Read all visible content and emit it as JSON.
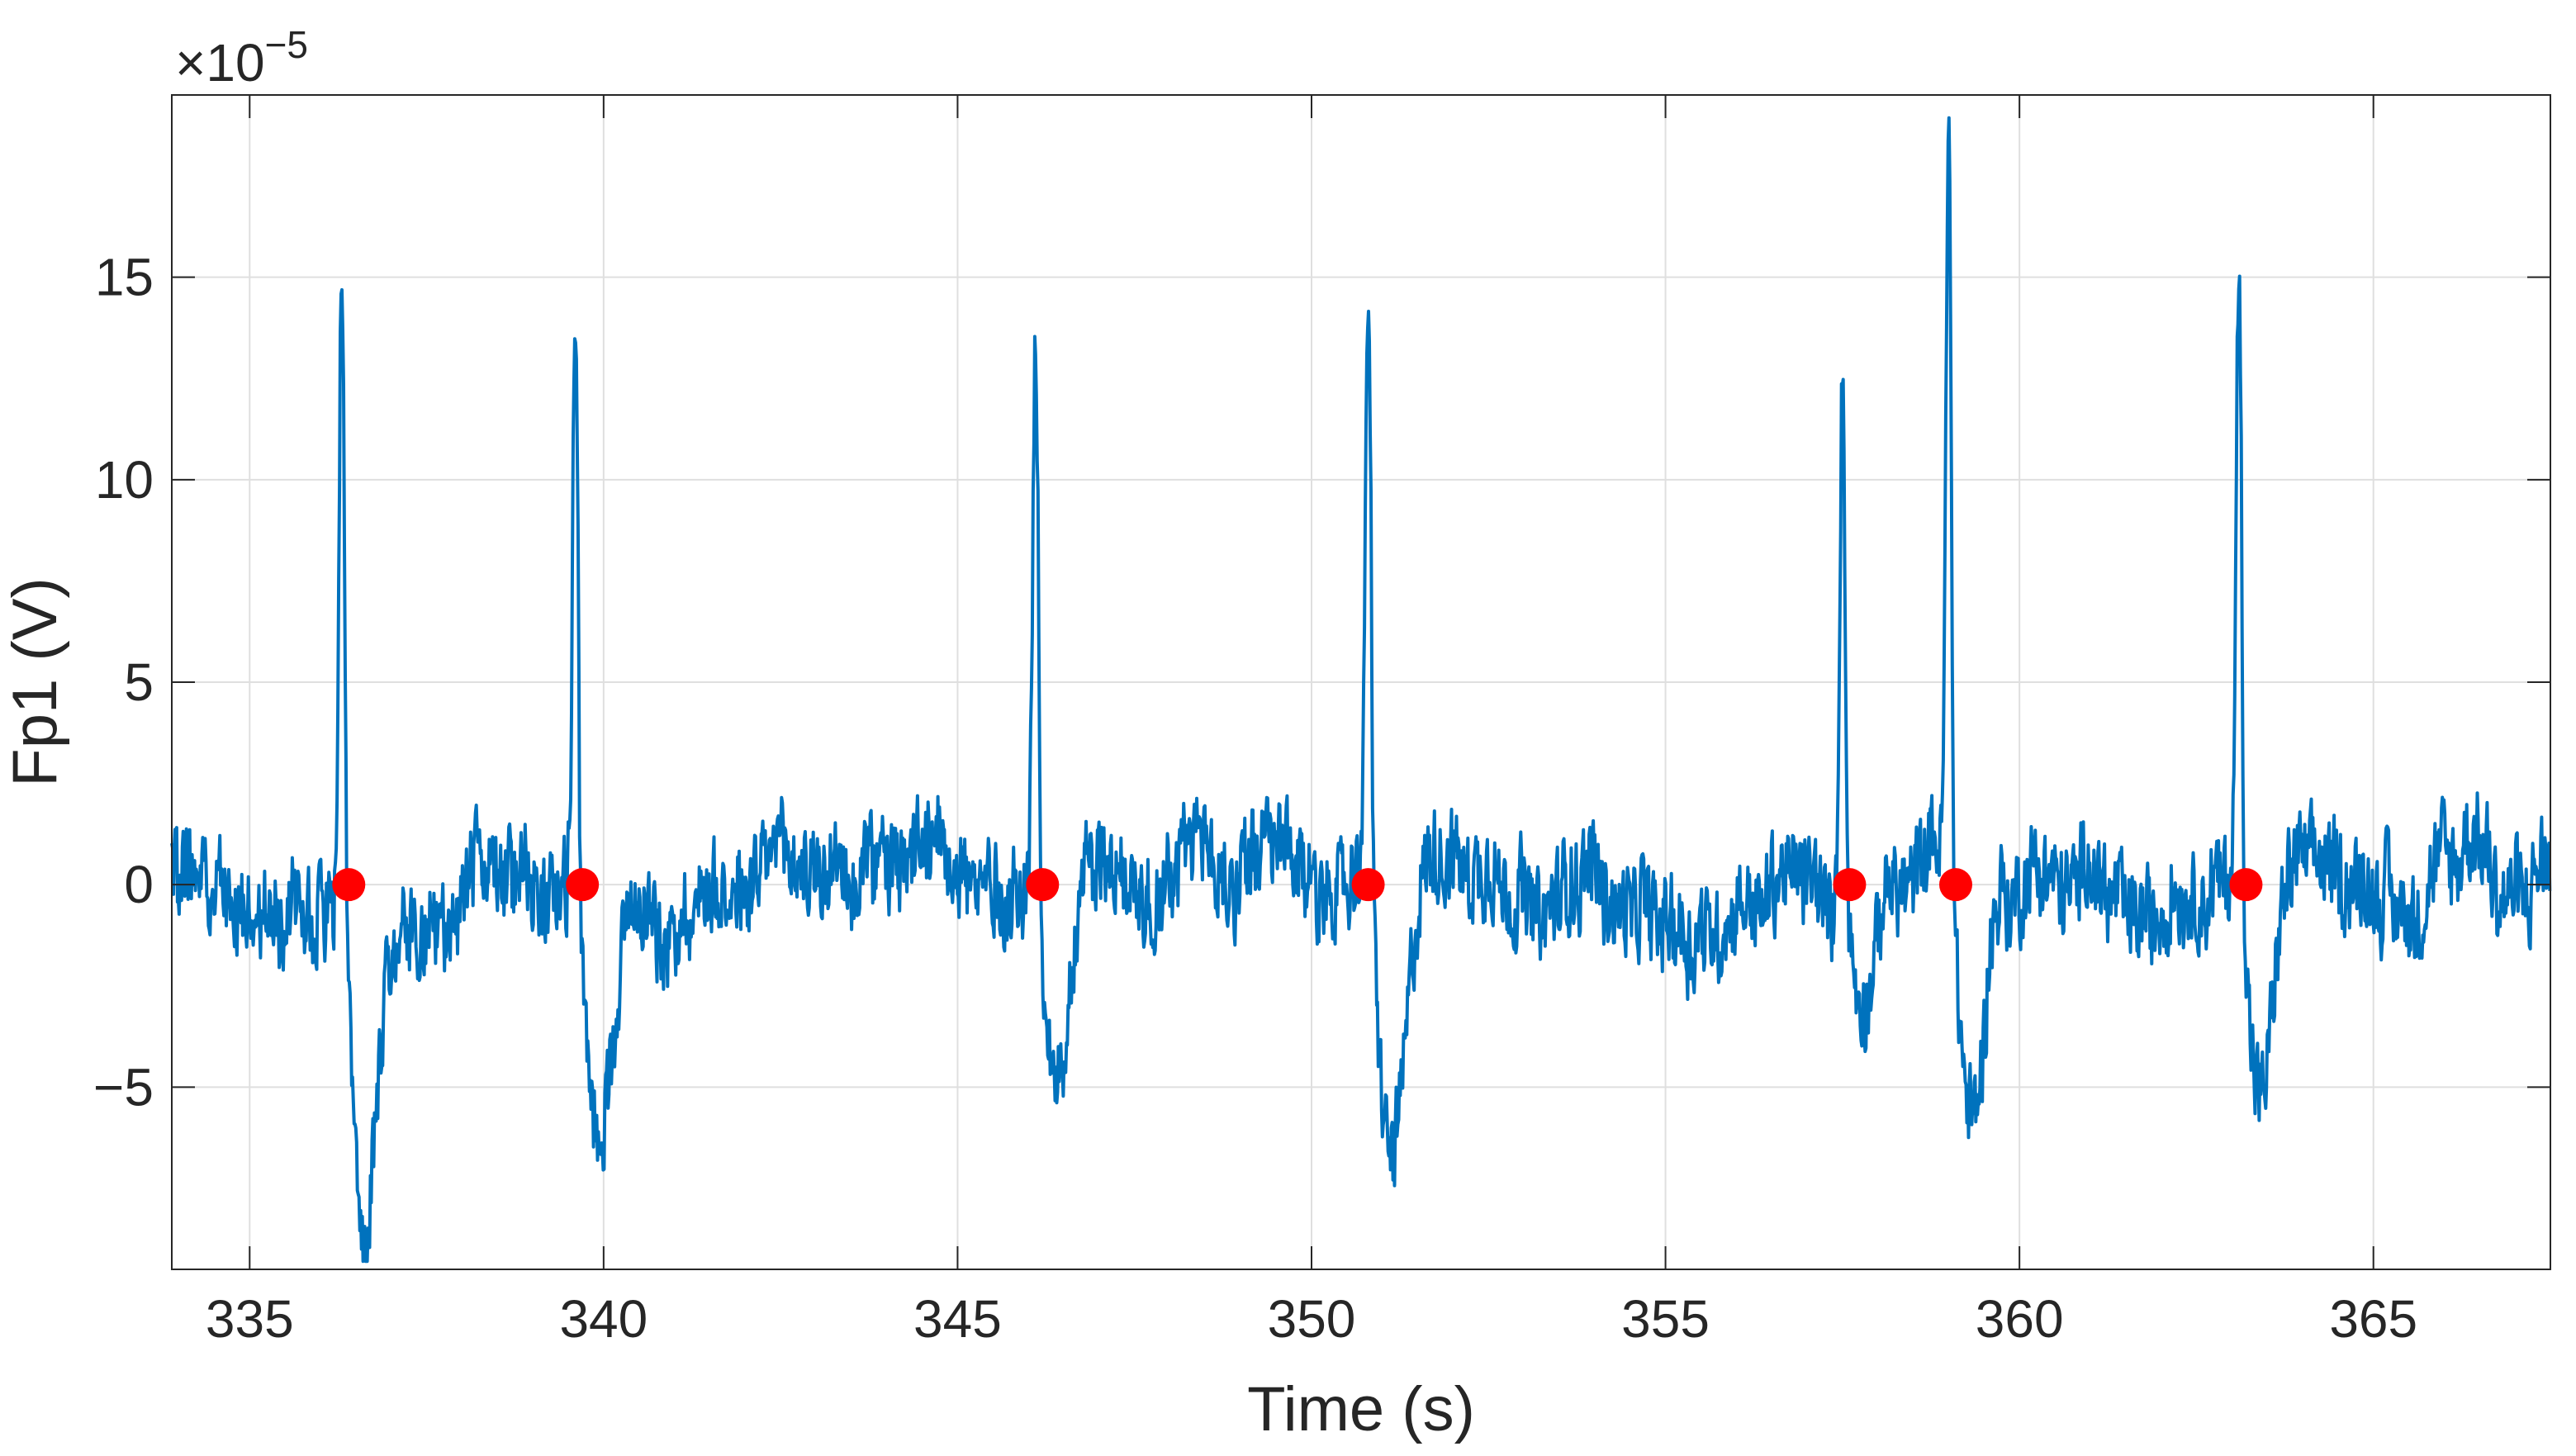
{
  "chart_data": {
    "type": "line",
    "title": "",
    "xlabel": "Time (s)",
    "ylabel": "Fp1 (V)",
    "xlim": [
      333.9,
      367.5
    ],
    "ylim": [
      -9.5,
      19.5
    ],
    "y_exponent_label": {
      "base": "×10",
      "exponent": "−5"
    },
    "xticks": [
      335,
      340,
      345,
      350,
      355,
      360,
      365
    ],
    "xtick_labels": [
      "335",
      "340",
      "345",
      "350",
      "355",
      "360",
      "365"
    ],
    "yticks": [
      -5,
      0,
      5,
      10,
      15
    ],
    "ytick_labels": [
      "−5",
      "0",
      "5",
      "10",
      "15"
    ],
    "grid": true,
    "series": [
      {
        "kind": "line",
        "color": "#0072BD",
        "signal": {
          "noise_amplitude": 1.6,
          "spikes": [
            {
              "x": 336.3,
              "peak": 16.6,
              "trough": -9.0
            },
            {
              "x": 339.6,
              "peak": 15.1,
              "trough": -6.8
            },
            {
              "x": 346.1,
              "peak": 14.5,
              "trough": -6.6
            },
            {
              "x": 350.8,
              "peak": 15.2,
              "trough": -7.9
            },
            {
              "x": 357.5,
              "peak": 14.0,
              "trough": -5.0
            },
            {
              "x": 359.0,
              "peak": 18.6,
              "trough": -6.8
            },
            {
              "x": 363.1,
              "peak": 15.9,
              "trough": -6.1
            }
          ]
        }
      },
      {
        "kind": "markers",
        "color": "#FF0000",
        "x": [
          336.4,
          339.7,
          346.2,
          350.8,
          357.6,
          359.1,
          363.2
        ],
        "y": [
          0,
          0,
          0,
          0,
          0,
          0,
          0
        ]
      }
    ]
  }
}
